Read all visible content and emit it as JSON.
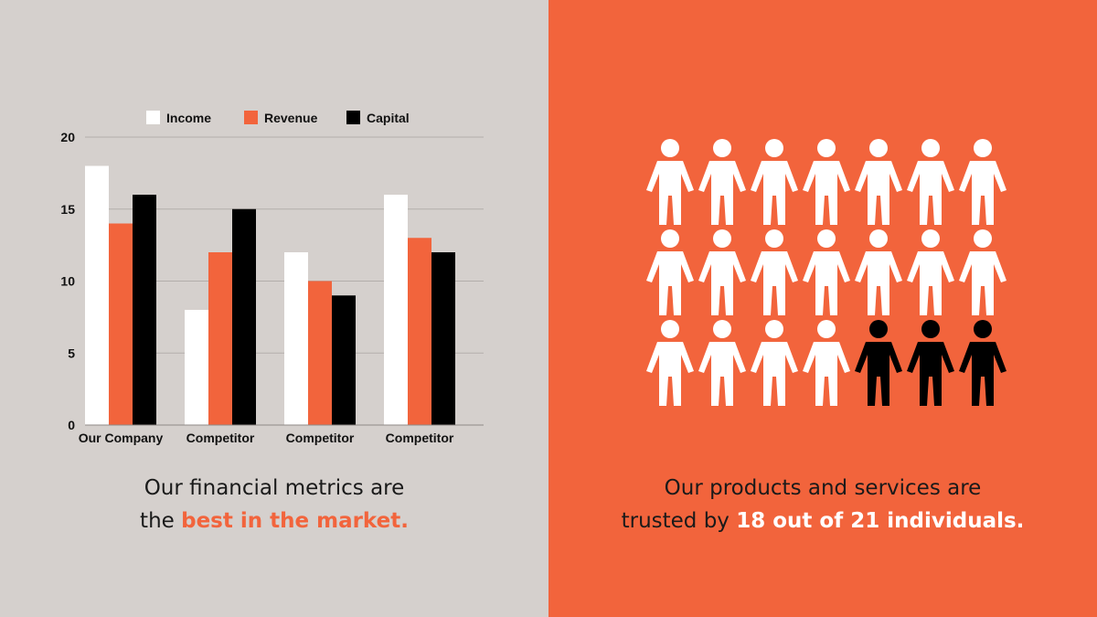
{
  "colors": {
    "left_bg": "#d5d0cd",
    "right_bg": "#f2643c",
    "income": "#ffffff",
    "revenue": "#f2643c",
    "capital": "#000000",
    "person_trusted": "#ffffff",
    "person_other": "#000000",
    "highlight_left": "#f2643c",
    "highlight_right": "#ffffff"
  },
  "chart_data": {
    "type": "bar",
    "categories": [
      "Our Company",
      "Competitor",
      "Competitor",
      "Competitor"
    ],
    "series": [
      {
        "name": "Income",
        "values": [
          18,
          8,
          12,
          16
        ]
      },
      {
        "name": "Revenue",
        "values": [
          14,
          12,
          10,
          13
        ]
      },
      {
        "name": "Capital",
        "values": [
          16,
          15,
          9,
          12
        ]
      }
    ],
    "yticks": [
      "0",
      "5",
      "10",
      "15",
      "20"
    ],
    "ylim": [
      0,
      20
    ],
    "grid": true,
    "legend_position": "top"
  },
  "left_caption": {
    "line1": "Our financial metrics are",
    "line2_prefix": "the ",
    "line2_highlight": "best in the market."
  },
  "right_caption": {
    "line1": "Our products and services are",
    "line2_prefix": "trusted by ",
    "line2_highlight": "18 out of 21 individuals."
  },
  "pictogram": {
    "total": 21,
    "trusted": 18,
    "columns": 7,
    "icon": "person-icon"
  }
}
